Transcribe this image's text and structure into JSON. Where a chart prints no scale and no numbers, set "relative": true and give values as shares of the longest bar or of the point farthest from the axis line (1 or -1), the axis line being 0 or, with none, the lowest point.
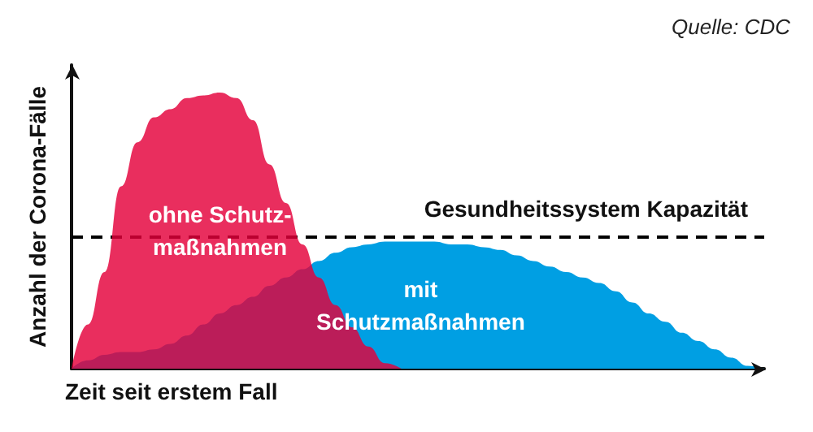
{
  "chart_data": {
    "type": "area",
    "relative": true,
    "xlabel": "Zeit seit erstem Fall",
    "ylabel": "Anzahl der Corona-Fälle",
    "annotations": [
      "Quelle: CDC"
    ],
    "legend": false,
    "grid": false,
    "marker": "none",
    "categories": [
      null,
      null,
      null,
      null,
      null,
      null,
      null,
      null,
      null,
      null,
      null,
      null,
      null,
      null,
      null,
      null,
      null,
      null,
      null,
      null,
      null,
      null,
      null,
      null,
      null,
      null,
      null,
      null,
      null,
      null,
      null,
      null,
      null,
      null,
      null,
      null,
      null,
      null,
      null,
      null,
      null,
      null,
      null
    ],
    "ref_lines": [
      {
        "axis": "y",
        "value": 0.48,
        "label": "Gesundheitssystem Kapazität",
        "color": "#000000",
        "line_style": "dashed"
      }
    ],
    "series": [
      {
        "name": "ohne Schutz-\nmaßnahmen",
        "color": "#e4003a",
        "values": [
          0,
          0.16,
          0.35,
          0.66,
          0.82,
          0.91,
          0.94,
          0.98,
          0.99,
          1,
          0.98,
          0.9,
          0.74,
          0.6,
          0.45,
          0.33,
          0.23,
          0.15,
          0.08,
          0.02,
          0,
          null,
          null,
          null,
          null,
          null,
          null,
          null,
          null,
          null,
          null,
          null,
          null,
          null,
          null,
          null,
          null,
          null,
          null,
          null,
          null,
          null,
          null
        ]
      },
      {
        "name": "mit\nSchutzmaßnahmen",
        "color": "#009fe3",
        "values": [
          0,
          0.03,
          0.05,
          0.06,
          0.06,
          0.07,
          0.09,
          0.12,
          0.16,
          0.2,
          0.23,
          0.26,
          0.3,
          0.33,
          0.36,
          0.39,
          0.42,
          0.44,
          0.45,
          0.46,
          0.46,
          0.46,
          0.46,
          0.45,
          0.45,
          0.44,
          0.43,
          0.41,
          0.39,
          0.37,
          0.35,
          0.33,
          0.31,
          0.28,
          0.24,
          0.2,
          0.17,
          0.13,
          0.1,
          0.07,
          0.04,
          0.01,
          0
        ]
      }
    ]
  }
}
